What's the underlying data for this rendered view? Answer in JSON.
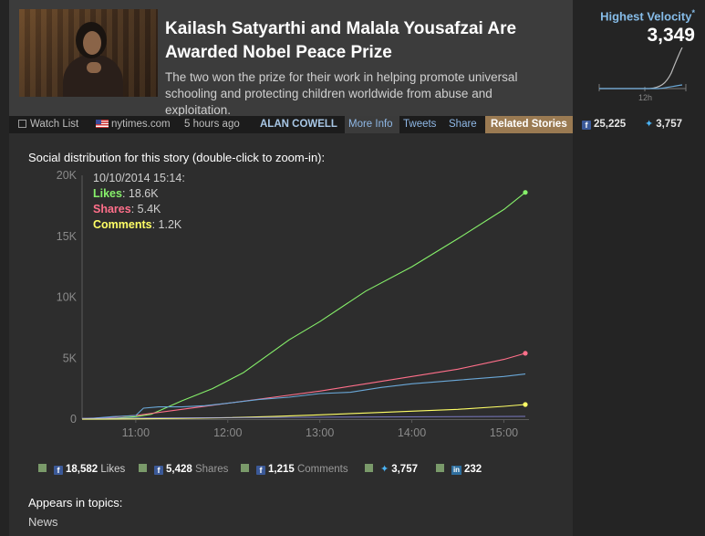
{
  "story": {
    "title": "Kailash Satyarthi and Malala Yousafzai Are Awarded Nobel Peace Prize",
    "summary": "The two won the prize for their work in helping promote universal schooling and protecting children worldwide from abuse and exploitation."
  },
  "meta": {
    "watch_list": "Watch List",
    "source": "nytimes.com",
    "time_ago": "5 hours ago",
    "author": "ALAN COWELL",
    "more_info": "More Info",
    "tweets": "Tweets",
    "share": "Share",
    "related_stories": "Related Stories",
    "facebook_count": "25,225",
    "twitter_count": "3,757"
  },
  "velocity": {
    "label": "Highest Velocity",
    "marker": "*",
    "value": "3,349",
    "axis_label": "12h"
  },
  "chart": {
    "title": "Social distribution for this story (double-click to zoom-in):",
    "tooltip": {
      "timestamp": "10/10/2014 15:14:",
      "likes_label": "Likes",
      "likes_value": ": 18.6K",
      "shares_label": "Shares",
      "shares_value": ": 5.4K",
      "comments_label": "Comments",
      "comments_value": ": 1.2K"
    }
  },
  "chart_data": {
    "type": "line",
    "y_ticks": [
      "0",
      "5K",
      "10K",
      "15K",
      "20K"
    ],
    "x_ticks": [
      "11:00",
      "12:00",
      "13:00",
      "14:00",
      "15:00"
    ],
    "ylim": [
      0,
      20000
    ],
    "grid": false,
    "series": [
      {
        "name": "Likes",
        "color": "#86f06a",
        "x": [
          "10:25",
          "10:40",
          "11:00",
          "11:10",
          "11:30",
          "11:50",
          "12:10",
          "12:40",
          "13:00",
          "13:30",
          "14:00",
          "14:30",
          "15:00",
          "15:14"
        ],
        "values": [
          0,
          0,
          200,
          400,
          1500,
          2500,
          3800,
          6500,
          8000,
          10500,
          12500,
          14800,
          17200,
          18600
        ]
      },
      {
        "name": "Shares",
        "color": "#ff6f8a",
        "x": [
          "10:25",
          "11:00",
          "11:30",
          "12:00",
          "12:30",
          "13:00",
          "13:30",
          "14:00",
          "14:30",
          "15:00",
          "15:14"
        ],
        "values": [
          0,
          300,
          800,
          1300,
          1800,
          2300,
          2900,
          3500,
          4100,
          4900,
          5400
        ]
      },
      {
        "name": "Tweets",
        "color": "#6aa8d8",
        "x": [
          "10:25",
          "10:45",
          "11:00",
          "11:05",
          "11:15",
          "11:30",
          "11:45",
          "12:00",
          "12:20",
          "12:40",
          "13:00",
          "13:20",
          "13:40",
          "14:00",
          "14:30",
          "15:00",
          "15:14"
        ],
        "values": [
          0,
          200,
          300,
          900,
          1000,
          1000,
          1100,
          1300,
          1600,
          1800,
          2100,
          2200,
          2600,
          2900,
          3200,
          3500,
          3700
        ]
      },
      {
        "name": "Comments",
        "color": "#ffff66",
        "x": [
          "10:25",
          "11:00",
          "11:30",
          "12:00",
          "12:30",
          "13:00",
          "13:30",
          "14:00",
          "14:30",
          "15:00",
          "15:14"
        ],
        "values": [
          0,
          20,
          60,
          120,
          220,
          350,
          500,
          650,
          800,
          1050,
          1200
        ]
      }
    ]
  },
  "legend": {
    "likes_value": "18,582",
    "likes_label": "Likes",
    "shares_value": "5,428",
    "shares_label": "Shares",
    "comments_value": "1,215",
    "comments_label": "Comments",
    "twitter_value": "3,757",
    "linkedin_value": "232"
  },
  "topics": {
    "title": "Appears in topics:",
    "items": [
      "News"
    ]
  }
}
